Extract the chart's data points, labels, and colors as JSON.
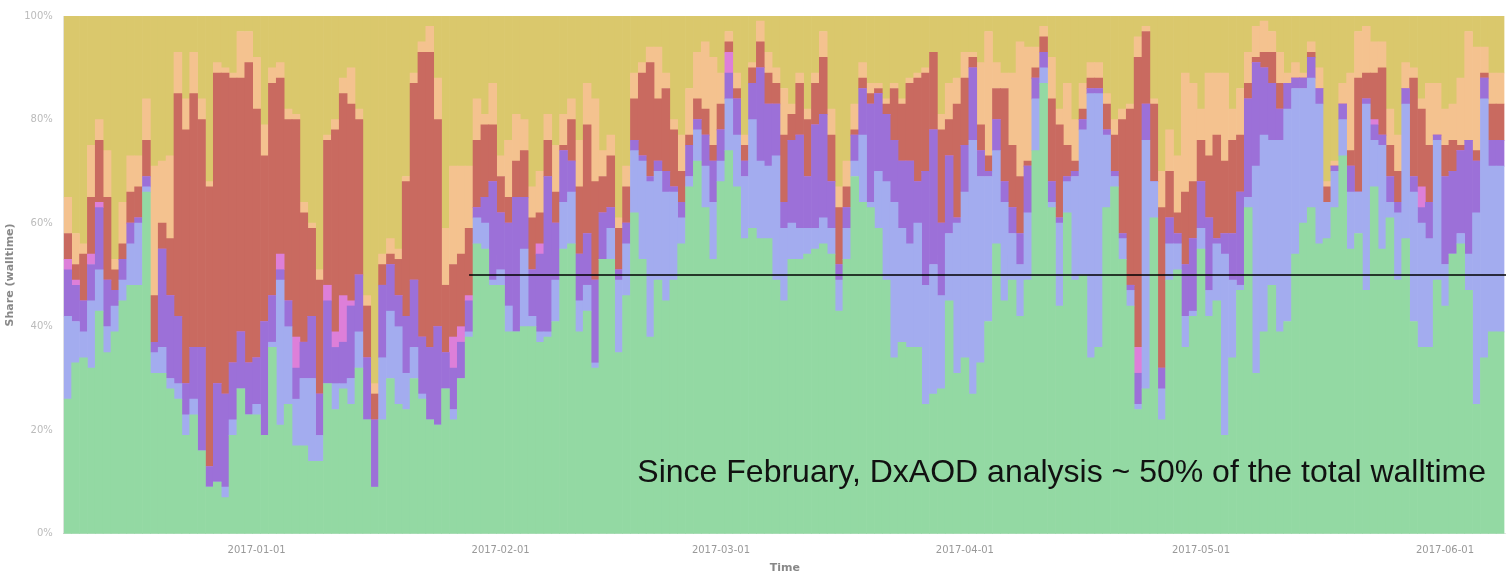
{
  "chart_data": {
    "type": "bar",
    "stacked": true,
    "xlabel": "Time",
    "ylabel": "Share (walltime)",
    "annotations": [
      "Since February, DxAOD analysis ~ 50% of the total walltime"
    ],
    "x": [
      "2016-12-08",
      "2016-12-09",
      "2016-12-10",
      "2016-12-11",
      "2016-12-12",
      "2016-12-13",
      "2016-12-14",
      "2016-12-15",
      "2016-12-16",
      "2016-12-17",
      "2016-12-18",
      "2016-12-19",
      "2016-12-20",
      "2016-12-21",
      "2016-12-22",
      "2016-12-23",
      "2016-12-24",
      "2016-12-25",
      "2016-12-26",
      "2016-12-27",
      "2016-12-28",
      "2016-12-29",
      "2016-12-30",
      "2016-12-31",
      "2017-01-01",
      "2017-01-02",
      "2017-01-03",
      "2017-01-04",
      "2017-01-05",
      "2017-01-06",
      "2017-01-07",
      "2017-01-08",
      "2017-01-09",
      "2017-01-10",
      "2017-01-11",
      "2017-01-12",
      "2017-01-13",
      "2017-01-14",
      "2017-01-15",
      "2017-01-16",
      "2017-01-17",
      "2017-01-18",
      "2017-01-19",
      "2017-01-20",
      "2017-01-21",
      "2017-01-22",
      "2017-01-23",
      "2017-01-24",
      "2017-01-25",
      "2017-01-26",
      "2017-01-27",
      "2017-01-28",
      "2017-01-29",
      "2017-01-30",
      "2017-01-31",
      "2017-02-01",
      "2017-02-02",
      "2017-02-03",
      "2017-02-04",
      "2017-02-05",
      "2017-02-06",
      "2017-02-07",
      "2017-02-08",
      "2017-02-09",
      "2017-02-10",
      "2017-02-11",
      "2017-02-12",
      "2017-02-13",
      "2017-02-14",
      "2017-02-15",
      "2017-02-16",
      "2017-02-17",
      "2017-02-18",
      "2017-02-19",
      "2017-02-20",
      "2017-02-21",
      "2017-02-22",
      "2017-02-23",
      "2017-02-24",
      "2017-02-25",
      "2017-02-26",
      "2017-02-27",
      "2017-02-28",
      "2017-03-01",
      "2017-03-02",
      "2017-03-03",
      "2017-03-04",
      "2017-03-05",
      "2017-03-06",
      "2017-03-07",
      "2017-03-08",
      "2017-03-09",
      "2017-03-10",
      "2017-03-11",
      "2017-03-12",
      "2017-03-13",
      "2017-03-14",
      "2017-03-15",
      "2017-03-16",
      "2017-03-17",
      "2017-03-18",
      "2017-03-19",
      "2017-03-20",
      "2017-03-21",
      "2017-03-22",
      "2017-03-23",
      "2017-03-24",
      "2017-03-25",
      "2017-03-26",
      "2017-03-27",
      "2017-03-28",
      "2017-03-29",
      "2017-03-30",
      "2017-03-31",
      "2017-04-01",
      "2017-04-02",
      "2017-04-03",
      "2017-04-04",
      "2017-04-05",
      "2017-04-06",
      "2017-04-07",
      "2017-04-08",
      "2017-04-09",
      "2017-04-10",
      "2017-04-11",
      "2017-04-12",
      "2017-04-13",
      "2017-04-14",
      "2017-04-15",
      "2017-04-16",
      "2017-04-17",
      "2017-04-18",
      "2017-04-19",
      "2017-04-20",
      "2017-04-21",
      "2017-04-22",
      "2017-04-23",
      "2017-04-24",
      "2017-04-25",
      "2017-04-26",
      "2017-04-27",
      "2017-04-28",
      "2017-04-29",
      "2017-04-30",
      "2017-05-01",
      "2017-05-02",
      "2017-05-03",
      "2017-05-04",
      "2017-05-05",
      "2017-05-06",
      "2017-05-07",
      "2017-05-08",
      "2017-05-09",
      "2017-05-10",
      "2017-05-11",
      "2017-05-12",
      "2017-05-13",
      "2017-05-14",
      "2017-05-15",
      "2017-05-16",
      "2017-05-17",
      "2017-05-18",
      "2017-05-19",
      "2017-05-20",
      "2017-05-21",
      "2017-05-22",
      "2017-05-23",
      "2017-05-24",
      "2017-05-25",
      "2017-05-26",
      "2017-05-27",
      "2017-05-28",
      "2017-05-29",
      "2017-05-30",
      "2017-05-31",
      "2017-06-01",
      "2017-06-02",
      "2017-06-03",
      "2017-06-04",
      "2017-06-05",
      "2017-06-06",
      "2017-06-07",
      "2017-06-08"
    ],
    "xlim": [
      "2016-12-07T12:00",
      "2017-06-08T18:00"
    ],
    "xticks": [
      "2017-01-01",
      "2017-02-01",
      "2017-03-01",
      "2017-04-01",
      "2017-05-01",
      "2017-06-01"
    ],
    "ylim": [
      0,
      100
    ],
    "yticks": [
      {
        "value": 0,
        "label": "0%"
      },
      {
        "value": 20,
        "label": "20%"
      },
      {
        "value": 40,
        "label": "40%"
      },
      {
        "value": 60,
        "label": "60%"
      },
      {
        "value": 80,
        "label": "80%"
      },
      {
        "value": 100,
        "label": "100%"
      }
    ],
    "series": [
      {
        "color": "#93d9a3",
        "values": [
          26,
          33,
          34,
          32,
          43,
          35,
          39,
          45,
          48,
          48,
          66,
          31,
          31,
          28,
          26,
          19,
          23,
          16,
          9,
          10,
          7,
          19,
          28,
          23,
          23,
          19,
          36,
          21,
          25,
          17,
          17,
          14,
          14,
          29,
          24,
          28,
          25,
          32,
          22,
          9,
          22,
          30,
          25,
          24,
          30,
          26,
          22,
          21,
          28,
          22,
          30,
          38,
          56,
          55,
          48,
          48,
          39,
          39,
          40,
          40,
          37,
          38,
          41,
          55,
          56,
          39,
          43,
          32,
          53,
          53,
          35,
          46,
          62,
          53,
          38,
          49,
          45,
          49,
          56,
          67,
          72,
          63,
          53,
          68,
          74,
          67,
          57,
          59,
          57,
          57,
          49,
          45,
          53,
          53,
          54,
          55,
          56,
          54,
          43,
          53,
          69,
          64,
          63,
          59,
          49,
          34,
          37,
          36,
          36,
          25,
          27,
          28,
          45,
          31,
          34,
          27,
          33,
          41,
          56,
          45,
          49,
          42,
          49,
          74,
          87,
          63,
          44,
          62,
          49,
          50,
          34,
          36,
          63,
          67,
          53,
          44,
          24,
          28,
          61,
          22,
          49,
          51,
          36,
          42,
          55,
          42,
          45,
          19,
          34,
          47,
          63,
          31,
          39,
          48,
          39,
          41,
          54,
          60,
          63,
          56,
          57,
          63,
          73,
          55,
          58,
          47,
          67,
          55,
          61,
          49,
          57,
          41,
          36,
          36,
          49,
          44,
          54,
          56,
          47,
          25,
          34,
          39,
          39
        ]
      },
      {
        "color": "#a3acef",
        "values": [
          16,
          8,
          5,
          13,
          8,
          5,
          5,
          4,
          8,
          12,
          1,
          4,
          5,
          2,
          3,
          4,
          3,
          0,
          0,
          0,
          2,
          3,
          0,
          0,
          2,
          0,
          1,
          28,
          15,
          9,
          13,
          16,
          5,
          0,
          5,
          1,
          5,
          7,
          0,
          0,
          12,
          13,
          15,
          7,
          6,
          1,
          0,
          0,
          0,
          2,
          0,
          1,
          5,
          5,
          1,
          3,
          5,
          0,
          15,
          2,
          2,
          1,
          8,
          9,
          10,
          6,
          5,
          1,
          0,
          6,
          14,
          10,
          12,
          19,
          30,
          21,
          21,
          17,
          5,
          2,
          6,
          8,
          11,
          4,
          10,
          10,
          12,
          21,
          15,
          14,
          24,
          14,
          7,
          6,
          5,
          4,
          5,
          5,
          6,
          6,
          3,
          13,
          1,
          11,
          19,
          30,
          22,
          20,
          24,
          23,
          25,
          18,
          13,
          29,
          32,
          49,
          36,
          28,
          18,
          19,
          9,
          10,
          13,
          10,
          3,
          1,
          16,
          6,
          20,
          28,
          51,
          49,
          14,
          2,
          4,
          3,
          1,
          48,
          7,
          6,
          7,
          5,
          6,
          1,
          4,
          5,
          11,
          35,
          15,
          1,
          2,
          40,
          38,
          28,
          37,
          41,
          32,
          26,
          25,
          27,
          7,
          7,
          7,
          11,
          8,
          36,
          9,
          20,
          3,
          13,
          26,
          25,
          24,
          21,
          27,
          8,
          0,
          2,
          7,
          37,
          50,
          32,
          32
        ]
      },
      {
        "color": "#9c70d8",
        "values": [
          9,
          7,
          6,
          7,
          12,
          9,
          3,
          4,
          4,
          1,
          2,
          2,
          19,
          16,
          13,
          6,
          10,
          20,
          4,
          19,
          18,
          11,
          11,
          10,
          9,
          22,
          9,
          2,
          5,
          6,
          7,
          12,
          8,
          16,
          7,
          8,
          14,
          11,
          12,
          13,
          14,
          9,
          6,
          11,
          13,
          11,
          14,
          19,
          7,
          8,
          7,
          6,
          2,
          5,
          19,
          11,
          16,
          26,
          10,
          9,
          15,
          30,
          11,
          10,
          6,
          9,
          10,
          16,
          9,
          4,
          2,
          4,
          2,
          1,
          1,
          2,
          4,
          1,
          3,
          6,
          2,
          6,
          8,
          6,
          5,
          7,
          3,
          7,
          18,
          12,
          10,
          5,
          16,
          18,
          10,
          20,
          20,
          9,
          3,
          4,
          5,
          9,
          19,
          15,
          13,
          12,
          13,
          16,
          8,
          22,
          26,
          14,
          15,
          1,
          9,
          14,
          5,
          1,
          6,
          4,
          5,
          6,
          9,
          4,
          3,
          4,
          1,
          1,
          1,
          2,
          1,
          1,
          1,
          1,
          1,
          1,
          6,
          7,
          0,
          4,
          5,
          2,
          10,
          14,
          9,
          14,
          1,
          4,
          9,
          18,
          19,
          20,
          13,
          11,
          6,
          5,
          2,
          2,
          4,
          3,
          0,
          1,
          3,
          5,
          0,
          1,
          3,
          2,
          5,
          2,
          3,
          3,
          3,
          7,
          1,
          17,
          16,
          16,
          22,
          10,
          4,
          5,
          5
        ]
      },
      {
        "color": "#dd7fd9",
        "values": [
          2,
          1,
          0,
          2,
          1,
          0,
          0,
          0,
          0,
          0,
          0,
          0,
          0,
          0,
          0,
          0,
          0,
          0,
          0,
          0,
          0,
          0,
          0,
          0,
          0,
          0,
          0,
          3,
          0,
          6,
          0,
          0,
          0,
          3,
          3,
          9,
          1,
          0,
          0,
          0,
          0,
          0,
          0,
          0,
          0,
          0,
          0,
          0,
          0,
          6,
          3,
          1,
          0,
          0,
          0,
          0,
          0,
          0,
          0,
          0,
          2,
          0,
          0,
          0,
          0,
          0,
          0,
          0,
          0,
          0,
          0,
          0,
          0,
          0,
          0,
          0,
          0,
          0,
          0,
          0,
          0,
          0,
          0,
          0,
          4,
          0,
          0,
          0,
          0,
          0,
          0,
          0,
          0,
          0,
          0,
          0,
          0,
          0,
          0,
          0,
          0,
          0,
          0,
          0,
          0,
          0,
          0,
          0,
          0,
          0,
          0,
          0,
          0,
          0,
          0,
          0,
          0,
          0,
          0,
          0,
          0,
          0,
          0,
          0,
          0,
          0,
          0,
          0,
          0,
          0,
          0,
          0,
          0,
          0,
          0,
          0,
          5,
          0,
          0,
          0,
          0,
          0,
          0,
          0,
          0,
          0,
          0,
          0,
          0,
          0,
          0,
          0,
          0,
          0,
          0,
          0,
          0,
          0,
          0,
          0,
          0,
          0,
          0,
          0,
          0,
          0,
          1,
          0,
          0,
          0,
          0,
          0,
          4,
          0,
          0,
          0,
          0,
          0,
          0,
          0,
          0,
          0,
          0
        ]
      },
      {
        "color": "#c96a60",
        "values": [
          5,
          3,
          9,
          11,
          12,
          16,
          4,
          3,
          6,
          6,
          7,
          9,
          5,
          11,
          43,
          49,
          49,
          44,
          54,
          60,
          62,
          55,
          49,
          58,
          48,
          32,
          41,
          34,
          35,
          42,
          25,
          17,
          22,
          28,
          39,
          39,
          38,
          30,
          10,
          5,
          4,
          2,
          7,
          26,
          38,
          55,
          57,
          40,
          13,
          14,
          14,
          13,
          13,
          14,
          11,
          7,
          5,
          7,
          9,
          10,
          6,
          7,
          6,
          1,
          8,
          13,
          21,
          19,
          7,
          10,
          8,
          7,
          8,
          16,
          22,
          12,
          16,
          11,
          6,
          2,
          4,
          5,
          3,
          5,
          2,
          2,
          3,
          3,
          5,
          6,
          4,
          13,
          5,
          10,
          11,
          8,
          11,
          9,
          11,
          4,
          1,
          2,
          2,
          1,
          2,
          10,
          11,
          15,
          20,
          19,
          15,
          18,
          7,
          22,
          13,
          2,
          5,
          3,
          6,
          18,
          12,
          11,
          1,
          2,
          3,
          16,
          18,
          6,
          2,
          2,
          2,
          2,
          5,
          7,
          22,
          34,
          56,
          14,
          15,
          31,
          9,
          4,
          14,
          11,
          8,
          12,
          20,
          14,
          18,
          11,
          3,
          1,
          3,
          6,
          5,
          0,
          0,
          0,
          1,
          0,
          3,
          0,
          0,
          3,
          22,
          5,
          9,
          13,
          6,
          6,
          0,
          19,
          15,
          11,
          0,
          6,
          6,
          1,
          0,
          2,
          1,
          7,
          7
        ]
      },
      {
        "color": "#f4c28f",
        "values": [
          7,
          6,
          2,
          10,
          4,
          9,
          2,
          8,
          7,
          6,
          8,
          25,
          12,
          16,
          8,
          6,
          8,
          4,
          1,
          2,
          1,
          1,
          9,
          6,
          10,
          6,
          3,
          3,
          2,
          1,
          2,
          1,
          2,
          1,
          2,
          3,
          7,
          2,
          2,
          2,
          2,
          3,
          2,
          1,
          2,
          2,
          5,
          8,
          11,
          19,
          17,
          12,
          8,
          2,
          8,
          4,
          11,
          9,
          6,
          6,
          8,
          5,
          9,
          6,
          4,
          9,
          8,
          16,
          5,
          4,
          2,
          4,
          5,
          2,
          3,
          10,
          3,
          2,
          7,
          9,
          9,
          13,
          17,
          6,
          2,
          3,
          2,
          1,
          4,
          4,
          3,
          9,
          2,
          2,
          2,
          2,
          5,
          5,
          4,
          5,
          5,
          3,
          2,
          1,
          1,
          1,
          1,
          1,
          1,
          1,
          0,
          3,
          7,
          5,
          5,
          1,
          12,
          24,
          5,
          3,
          14,
          26,
          22,
          4,
          2,
          8,
          3,
          12,
          8,
          5,
          3,
          3,
          2,
          3,
          2,
          1,
          4,
          1,
          1,
          7,
          8,
          11,
          23,
          19,
          6,
          16,
          12,
          17,
          6,
          9,
          6,
          6,
          6,
          4,
          6,
          2,
          3,
          1,
          2,
          4,
          1,
          1,
          4,
          15,
          9,
          9,
          6,
          5,
          7,
          7,
          5,
          2,
          2,
          12,
          10,
          7,
          7,
          13,
          21,
          20,
          5,
          6,
          6
        ]
      },
      {
        "color": "#dac86c",
        "values": [
          35,
          42,
          44,
          25,
          20,
          26,
          47,
          36,
          27,
          27,
          16,
          29,
          28,
          27,
          7,
          16,
          7,
          16,
          32,
          9,
          10,
          11,
          3,
          3,
          8,
          21,
          10,
          9,
          18,
          19,
          36,
          40,
          49,
          23,
          20,
          12,
          10,
          18,
          54,
          71,
          46,
          43,
          45,
          31,
          11,
          5,
          2,
          12,
          41,
          29,
          29,
          29,
          16,
          19,
          13,
          27,
          24,
          19,
          20,
          33,
          30,
          19,
          25,
          19,
          16,
          24,
          13,
          16,
          26,
          23,
          39,
          29,
          11,
          9,
          6,
          6,
          11,
          20,
          23,
          14,
          7,
          5,
          8,
          11,
          3,
          11,
          23,
          9,
          1,
          7,
          10,
          14,
          17,
          11,
          18,
          11,
          3,
          18,
          33,
          28,
          17,
          9,
          13,
          13,
          16,
          13,
          16,
          12,
          11,
          10,
          7,
          19,
          13,
          12,
          7,
          7,
          9,
          3,
          9,
          11,
          11,
          5,
          6,
          6,
          2,
          8,
          18,
          13,
          20,
          13,
          9,
          9,
          15,
          20,
          18,
          17,
          4,
          2,
          16,
          30,
          22,
          27,
          11,
          13,
          18,
          11,
          11,
          11,
          18,
          14,
          7,
          2,
          1,
          3,
          7,
          11,
          9,
          11,
          5,
          10,
          32,
          28,
          13,
          11,
          3,
          2,
          5,
          5,
          18,
          23,
          9,
          10,
          16,
          13,
          13,
          18,
          17,
          12,
          3,
          6,
          6,
          11,
          11
        ]
      },
      {
        "type": "line",
        "color": "#000000",
        "x": [
          "2017-01-28",
          "2017-06-08T18:00"
        ],
        "values": [
          50,
          50
        ]
      }
    ]
  }
}
